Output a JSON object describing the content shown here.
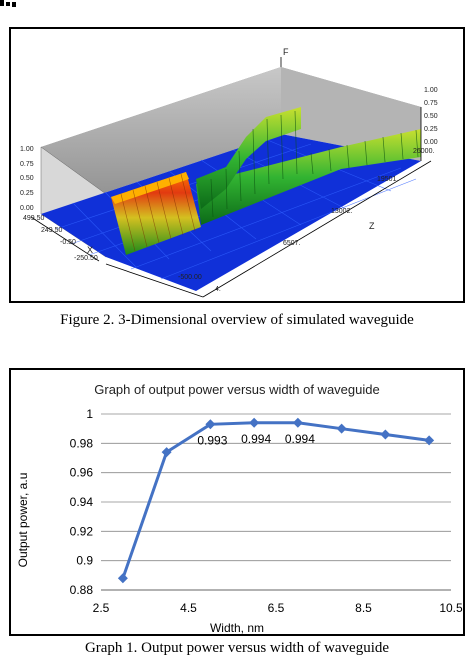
{
  "figure2": {
    "caption": "Figure 2.    3-Dimensional overview of simulated waveguide",
    "axis_labels": {
      "f": "F",
      "x": "X",
      "z": "Z"
    },
    "z_ticks": [
      "1.00",
      "0.75",
      "0.50",
      "0.25",
      "0.00"
    ],
    "f_ticks_right": [
      "1.00",
      "0.75",
      "0.50",
      "0.25",
      "0.00"
    ],
    "x_ticks": [
      "499.50",
      "249.50",
      "-0.50",
      "-250.50",
      "-500.00"
    ],
    "z_axis_ticks": [
      "4.",
      "6507.",
      "13002.",
      "19501.",
      "26000."
    ]
  },
  "graph1": {
    "caption": "Graph 1.     Output power versus width of waveguide"
  },
  "chart_data": {
    "type": "line",
    "title": "Graph of output power versus width of waveguide",
    "xlabel": "Width, nm",
    "ylabel": "Output power, a.u",
    "xlim": [
      2.5,
      10.5
    ],
    "ylim": [
      0.88,
      1.0
    ],
    "x_ticks": [
      "2.5",
      "4.5",
      "6.5",
      "8.5",
      "10.5"
    ],
    "y_ticks": [
      "0.88",
      "0.9",
      "0.92",
      "0.94",
      "0.96",
      "0.98",
      "1"
    ],
    "grid": "horizontal",
    "color": "#4472c4",
    "x": [
      3,
      4,
      5,
      6,
      7,
      8,
      9,
      10
    ],
    "y": [
      0.888,
      0.974,
      0.993,
      0.994,
      0.994,
      0.99,
      0.986,
      0.982
    ],
    "data_labels": [
      {
        "x": 5,
        "text": "0.993"
      },
      {
        "x": 6,
        "text": "0.994"
      },
      {
        "x": 7,
        "text": "0.994"
      }
    ]
  }
}
